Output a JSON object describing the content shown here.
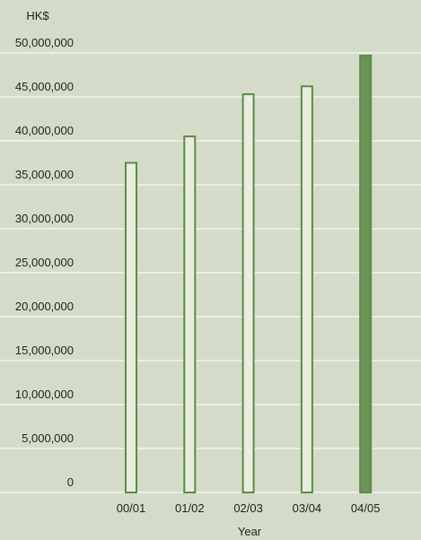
{
  "chart_data": {
    "type": "bar",
    "y_label": "HK$",
    "x_label": "Year",
    "categories": [
      "00/01",
      "01/02",
      "02/03",
      "03/04",
      "04/05"
    ],
    "values": [
      37500000,
      40500000,
      45300000,
      46200000,
      49700000
    ],
    "colors": [
      "#e8eddf",
      "#e8eddf",
      "#e8eddf",
      "#e8eddf",
      "#6b9459"
    ],
    "edge_color": "#5c8b48",
    "ylim": [
      0,
      50000000
    ],
    "yticks": [
      0,
      {
        "value": 5000000,
        "label": "5,000,000"
      },
      {
        "value": 10000000,
        "label": "10,000,000"
      },
      {
        "value": 15000000,
        "label": "15,000,000"
      },
      {
        "value": 20000000,
        "label": "20,000,000"
      },
      {
        "value": 25000000,
        "label": "25,000,000"
      },
      {
        "value": 30000000,
        "label": "30,000,000"
      },
      {
        "value": 35000000,
        "label": "35,000,000"
      },
      {
        "value": 40000000,
        "label": "40,000,000"
      },
      {
        "value": 45000000,
        "label": "45,000,000"
      },
      {
        "value": 50000000,
        "label": "50,000,000"
      }
    ],
    "grid": true
  }
}
